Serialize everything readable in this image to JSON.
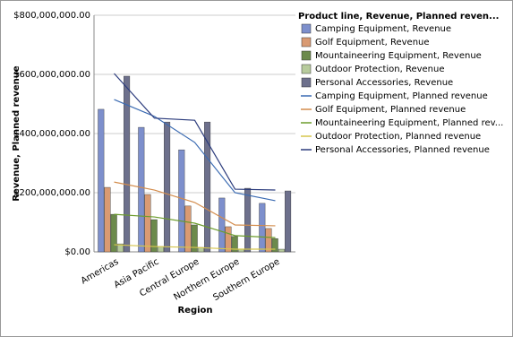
{
  "chart_data": {
    "type": "bar",
    "x_label": "Region",
    "y_label": "Revenue, Planned revenue",
    "legend_title": "Product line, Revenue, Planned reven...",
    "legend": "right",
    "grid": true,
    "categories": [
      "Americas",
      "Asia Pacific",
      "Central Europe",
      "Northern Europe",
      "Southern Europe"
    ],
    "ylim": [
      0,
      800000000
    ],
    "yticks": [
      {
        "value": 0,
        "label": "$0.00"
      },
      {
        "value": 200000000,
        "label": "$200,000,000.00"
      },
      {
        "value": 400000000,
        "label": "$400,000,000.00"
      },
      {
        "value": 600000000,
        "label": "$600,000,000.00"
      },
      {
        "value": 800000000,
        "label": "$800,000,000.00"
      }
    ],
    "series": [
      {
        "name": "Camping Equipment, Revenue",
        "type": "bar",
        "color": "#7d8fcc",
        "values": [
          482000000,
          421000000,
          345000000,
          182000000,
          164000000
        ]
      },
      {
        "name": "Golf Equipment, Revenue",
        "type": "bar",
        "color": "#d99a72",
        "values": [
          218000000,
          194000000,
          155000000,
          85000000,
          79000000
        ]
      },
      {
        "name": "Mountaineering Equipment, Revenue",
        "type": "bar",
        "color": "#6c8a4c",
        "values": [
          127000000,
          109000000,
          91000000,
          52000000,
          45000000
        ]
      },
      {
        "name": "Outdoor Protection, Revenue",
        "type": "bar",
        "color": "#b7cb9c",
        "values": [
          27000000,
          18000000,
          15000000,
          9000000,
          9000000
        ]
      },
      {
        "name": "Personal Accessories, Revenue",
        "type": "bar",
        "color": "#6d708c",
        "values": [
          594000000,
          439000000,
          439000000,
          215000000,
          206000000
        ]
      },
      {
        "name": "Camping Equipment, Planned revenue",
        "type": "line",
        "color": "#3b6bb2",
        "values": [
          515000000,
          458000000,
          370000000,
          200000000,
          173000000
        ]
      },
      {
        "name": "Golf Equipment, Planned revenue",
        "type": "line",
        "color": "#d38c4c",
        "values": [
          236000000,
          209000000,
          167000000,
          91000000,
          88000000
        ]
      },
      {
        "name": "Mountaineering Equipment, Planned rev...",
        "type": "line",
        "color": "#6c9c2c",
        "values": [
          127000000,
          118000000,
          97000000,
          55000000,
          48000000
        ]
      },
      {
        "name": "Outdoor Protection, Planned revenue",
        "type": "line",
        "color": "#d6c64c",
        "values": [
          24000000,
          18000000,
          15000000,
          9000000,
          9000000
        ]
      },
      {
        "name": "Personal Accessories, Planned revenue",
        "type": "line",
        "color": "#2b3b7c",
        "values": [
          603000000,
          452000000,
          445000000,
          212000000,
          209000000
        ]
      }
    ]
  }
}
